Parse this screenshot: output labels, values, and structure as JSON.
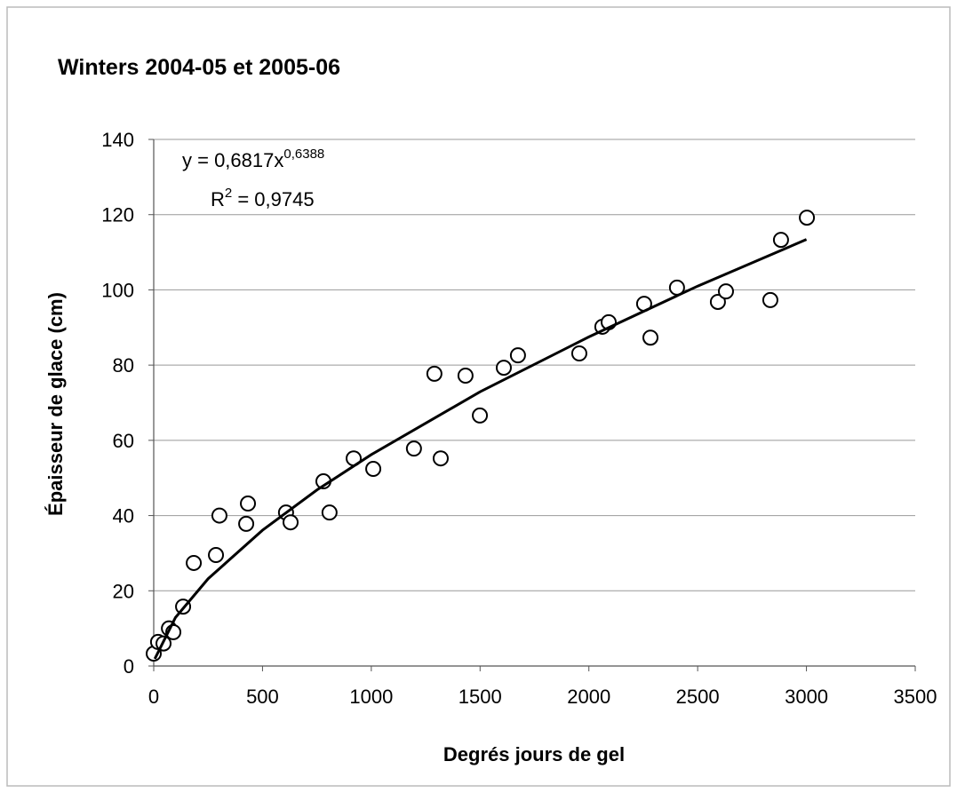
{
  "chart_data": {
    "type": "scatter",
    "title": "Winters 2004-05 et 2005-06",
    "x_label": "Degrés jours de gel",
    "y_label": "Épaisseur de glace (cm)",
    "annotations": {
      "equation": "y = 0,6817x",
      "exponent": "0,6388",
      "r_symbol": "R",
      "r_power": "2",
      "r_value": " = 0,9745"
    },
    "xlim": [
      0,
      3500
    ],
    "xticks": [
      0,
      500,
      1000,
      1500,
      2000,
      2500,
      3000,
      3500
    ],
    "ylim": [
      0,
      140
    ],
    "yticks": [
      0,
      20,
      40,
      60,
      80,
      100,
      120,
      140
    ],
    "grid": true,
    "series": [
      {
        "color": "#000000",
        "x": [
          0,
          20,
          45,
          70,
          90,
          135,
          184,
          286,
          302,
          425,
          433,
          608,
          629,
          780,
          808,
          919,
          1009,
          1196,
          1290,
          1319,
          1433,
          1499,
          1609,
          1674,
          1956,
          2062,
          2091,
          2254,
          2283,
          2405,
          2593,
          2630,
          2834,
          2883,
          3002
        ],
        "values": [
          3.3,
          6.4,
          6,
          10,
          9,
          15.8,
          27.4,
          29.5,
          40,
          37.8,
          43.2,
          40.8,
          38.2,
          49.1,
          40.8,
          55.2,
          52.4,
          57.8,
          77.7,
          55.2,
          77.2,
          66.6,
          79.3,
          82.6,
          83.1,
          90.2,
          91.4,
          96.3,
          87.3,
          100.6,
          96.8,
          99.6,
          97.3,
          113.3,
          119.2
        ]
      },
      {
        "type": "line",
        "color": "#000000",
        "x": [
          5,
          100,
          250,
          500,
          750,
          1000,
          1500,
          2000,
          2500,
          3000
        ],
        "values": [
          1.9,
          12.9,
          23.2,
          36.1,
          46.8,
          56.2,
          72.9,
          87.5,
          101.0,
          113.4
        ]
      }
    ]
  }
}
